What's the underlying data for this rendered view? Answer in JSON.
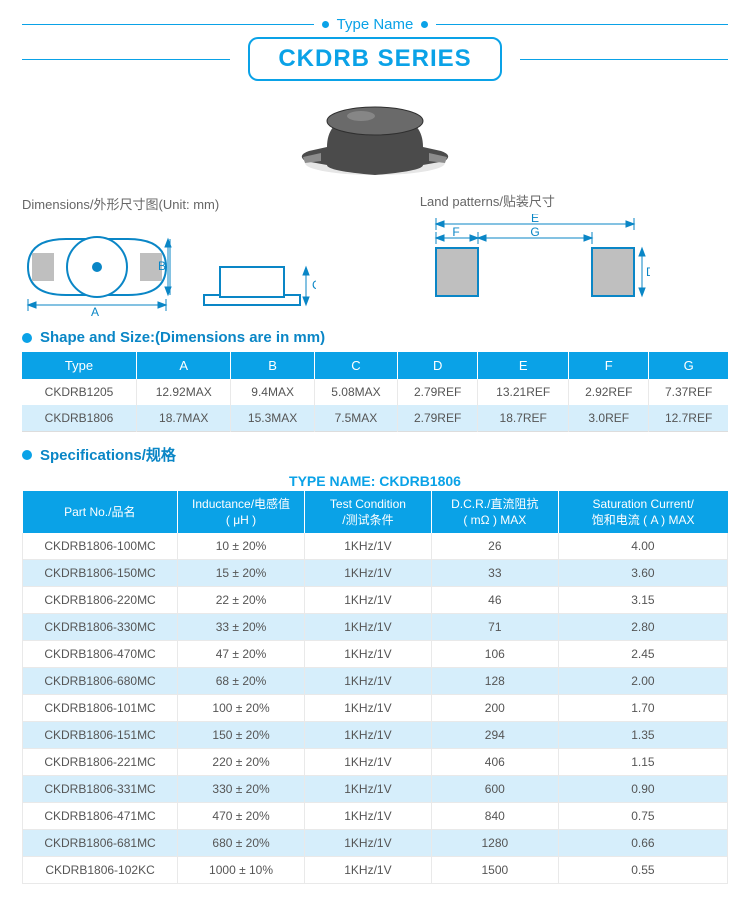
{
  "header": {
    "type_name_label": "Type Name",
    "series": "CKDRB SERIES"
  },
  "colors": {
    "brand": "#0aa2e7",
    "header_bg": "#0aa2e7",
    "row_alt": "#d6eefb",
    "text": "#555"
  },
  "labels": {
    "dimensions": "Dimensions/外形尺寸图(Unit: mm)",
    "land_patterns": "Land patterns/贴装尺寸",
    "shape_size": "Shape and Size:(Dimensions are in mm)",
    "specifications": "Specifications/规格",
    "spec_type_name": "TYPE NAME: CKDRB1806"
  },
  "shape_size": {
    "columns": [
      "Type",
      "A",
      "B",
      "C",
      "D",
      "E",
      "F",
      "G"
    ],
    "rows": [
      [
        "CKDRB1205",
        "12.92MAX",
        "9.4MAX",
        "5.08MAX",
        "2.79REF",
        "13.21REF",
        "2.92REF",
        "7.37REF"
      ],
      [
        "CKDRB1806",
        "18.7MAX",
        "15.3MAX",
        "7.5MAX",
        "2.79REF",
        "18.7REF",
        "3.0REF",
        "12.7REF"
      ]
    ]
  },
  "spec": {
    "columns": [
      "Part No./品名",
      "Inductance/电感值\n( μH )",
      "Test Condition\n/测试条件",
      "D.C.R./直流阻抗\n( mΩ ) MAX",
      "Saturation Current/\n饱和电流 ( A ) MAX"
    ],
    "column_widths_pct": [
      22,
      18,
      18,
      18,
      24
    ],
    "rows": [
      [
        "CKDRB1806-100MC",
        "10 ± 20%",
        "1KHz/1V",
        "26",
        "4.00"
      ],
      [
        "CKDRB1806-150MC",
        "15 ± 20%",
        "1KHz/1V",
        "33",
        "3.60"
      ],
      [
        "CKDRB1806-220MC",
        "22 ± 20%",
        "1KHz/1V",
        "46",
        "3.15"
      ],
      [
        "CKDRB1806-330MC",
        "33 ± 20%",
        "1KHz/1V",
        "71",
        "2.80"
      ],
      [
        "CKDRB1806-470MC",
        "47 ± 20%",
        "1KHz/1V",
        "106",
        "2.45"
      ],
      [
        "CKDRB1806-680MC",
        "68 ± 20%",
        "1KHz/1V",
        "128",
        "2.00"
      ],
      [
        "CKDRB1806-101MC",
        "100 ± 20%",
        "1KHz/1V",
        "200",
        "1.70"
      ],
      [
        "CKDRB1806-151MC",
        "150 ± 20%",
        "1KHz/1V",
        "294",
        "1.35"
      ],
      [
        "CKDRB1806-221MC",
        "220 ± 20%",
        "1KHz/1V",
        "406",
        "1.15"
      ],
      [
        "CKDRB1806-331MC",
        "330 ± 20%",
        "1KHz/1V",
        "600",
        "0.90"
      ],
      [
        "CKDRB1806-471MC",
        "470 ± 20%",
        "1KHz/1V",
        "840",
        "0.75"
      ],
      [
        "CKDRB1806-681MC",
        "680 ± 20%",
        "1KHz/1V",
        "1280",
        "0.66"
      ],
      [
        "CKDRB1806-102KC",
        "1000 ± 10%",
        "1KHz/1V",
        "1500",
        "0.55"
      ]
    ]
  },
  "diagram_labels": {
    "dim_A": "A",
    "dim_B": "B",
    "dim_C": "C",
    "dim_D": "D",
    "dim_E": "E",
    "dim_F": "F",
    "dim_G": "G"
  }
}
